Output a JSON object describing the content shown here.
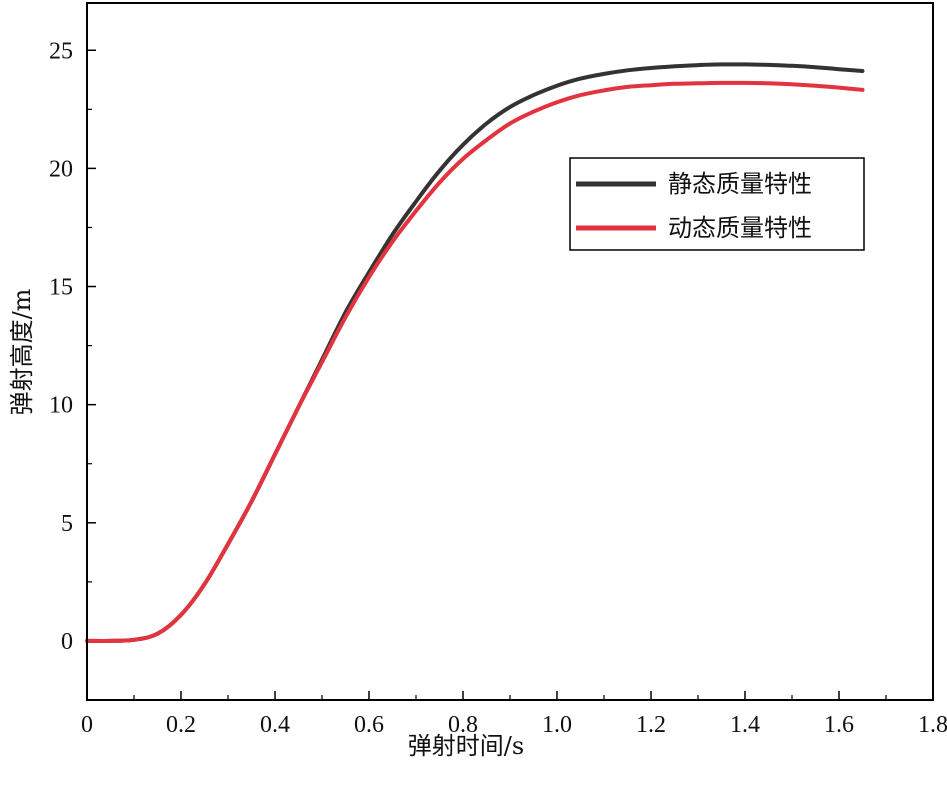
{
  "chart_data": {
    "type": "line",
    "title": "",
    "xlabel": "弹射时间/s",
    "ylabel": "弹射高度/m",
    "xlim": [
      0,
      1.8
    ],
    "ylim": [
      -2.5,
      27
    ],
    "xticks": [
      0,
      0.2,
      0.4,
      0.6,
      0.8,
      1.0,
      1.2,
      1.4,
      1.6,
      1.8
    ],
    "xtick_labels": [
      "0",
      "0.2",
      "0.4",
      "0.6",
      "0.8",
      "1.0",
      "1.2",
      "1.4",
      "1.6",
      "1.8"
    ],
    "yticks": [
      0,
      5,
      10,
      15,
      20,
      25
    ],
    "ytick_labels": [
      "0",
      "5",
      "10",
      "15",
      "20",
      "25"
    ],
    "grid": false,
    "legend_position": "upper-right",
    "series": [
      {
        "name": "静态质量特性",
        "color": "#333333",
        "x": [
          0,
          0.05,
          0.1,
          0.15,
          0.2,
          0.25,
          0.3,
          0.35,
          0.4,
          0.45,
          0.5,
          0.55,
          0.6,
          0.65,
          0.7,
          0.75,
          0.8,
          0.85,
          0.9,
          0.95,
          1.0,
          1.05,
          1.1,
          1.15,
          1.2,
          1.25,
          1.3,
          1.35,
          1.4,
          1.45,
          1.5,
          1.55,
          1.6,
          1.65
        ],
        "y": [
          0,
          0,
          0.05,
          0.3,
          1.1,
          2.4,
          4.1,
          5.9,
          7.9,
          9.9,
          11.9,
          13.9,
          15.6,
          17.2,
          18.6,
          19.9,
          21.0,
          21.9,
          22.6,
          23.1,
          23.5,
          23.8,
          24.0,
          24.15,
          24.25,
          24.32,
          24.37,
          24.4,
          24.4,
          24.38,
          24.34,
          24.28,
          24.2,
          24.12
        ]
      },
      {
        "name": "动态质量特性",
        "color": "#e2333f",
        "x": [
          0,
          0.05,
          0.1,
          0.15,
          0.2,
          0.25,
          0.3,
          0.35,
          0.4,
          0.45,
          0.5,
          0.55,
          0.6,
          0.65,
          0.7,
          0.75,
          0.8,
          0.85,
          0.9,
          0.95,
          1.0,
          1.05,
          1.1,
          1.15,
          1.2,
          1.25,
          1.3,
          1.35,
          1.4,
          1.45,
          1.5,
          1.55,
          1.6,
          1.65
        ],
        "y": [
          0,
          0,
          0.05,
          0.3,
          1.1,
          2.4,
          4.1,
          5.9,
          7.9,
          9.9,
          11.8,
          13.7,
          15.4,
          16.9,
          18.2,
          19.4,
          20.4,
          21.2,
          21.9,
          22.4,
          22.8,
          23.1,
          23.3,
          23.45,
          23.52,
          23.58,
          23.6,
          23.62,
          23.62,
          23.6,
          23.56,
          23.5,
          23.42,
          23.32
        ]
      }
    ]
  }
}
